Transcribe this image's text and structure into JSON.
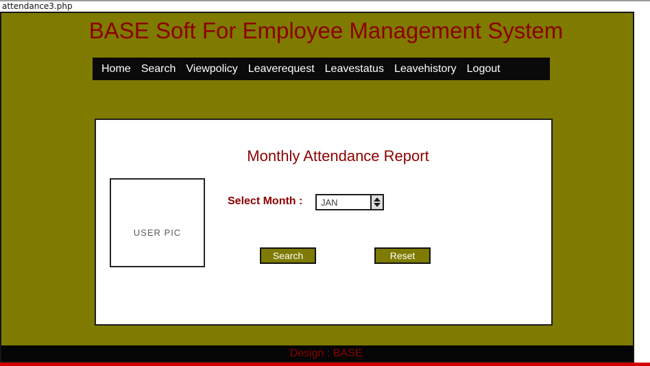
{
  "colors": {
    "olive_background": "#7E7B00",
    "dark_red_text": "#8B0000",
    "nav_black": "#0a0a0a",
    "bottom_red_line": "#d40000"
  },
  "browser": {
    "tab_title": "attendance3.php"
  },
  "header": {
    "title": "BASE Soft For Employee Management System"
  },
  "nav": {
    "items": [
      "Home",
      "Search",
      "Viewpolicy",
      "Leaverequest",
      "Leavestatus",
      "Leavehistory",
      "Logout"
    ]
  },
  "main": {
    "report_title": "Monthly Attendance Report",
    "user_pic_label": "USER PIC",
    "select_month_label": "Select Month :",
    "month_select": {
      "selected": "JAN"
    },
    "search_button_label": "Search",
    "reset_button_label": "Reset"
  },
  "footer": {
    "text": "Design : BASE"
  }
}
